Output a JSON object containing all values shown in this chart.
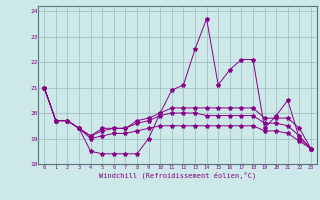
{
  "x": [
    0,
    1,
    2,
    3,
    4,
    5,
    6,
    7,
    8,
    9,
    10,
    11,
    12,
    13,
    14,
    15,
    16,
    17,
    18,
    19,
    20,
    21,
    22,
    23
  ],
  "line1": [
    21.0,
    19.7,
    19.7,
    19.4,
    18.5,
    18.4,
    18.4,
    18.4,
    18.4,
    19.0,
    20.0,
    20.9,
    21.1,
    22.5,
    23.7,
    21.1,
    21.7,
    22.1,
    22.1,
    19.4,
    19.9,
    20.5,
    19.0,
    18.6
  ],
  "line2": [
    21.0,
    19.7,
    19.7,
    19.4,
    19.1,
    19.4,
    19.4,
    19.4,
    19.7,
    19.8,
    20.0,
    20.2,
    20.2,
    20.2,
    20.2,
    20.2,
    20.2,
    20.2,
    20.2,
    19.8,
    19.8,
    19.8,
    19.4,
    18.6
  ],
  "line3": [
    21.0,
    19.7,
    19.7,
    19.4,
    19.1,
    19.3,
    19.4,
    19.4,
    19.6,
    19.7,
    19.9,
    20.0,
    20.0,
    20.0,
    19.9,
    19.9,
    19.9,
    19.9,
    19.9,
    19.6,
    19.6,
    19.5,
    19.1,
    18.6
  ],
  "line4": [
    21.0,
    19.7,
    19.7,
    19.4,
    19.0,
    19.1,
    19.2,
    19.2,
    19.3,
    19.4,
    19.5,
    19.5,
    19.5,
    19.5,
    19.5,
    19.5,
    19.5,
    19.5,
    19.5,
    19.3,
    19.3,
    19.2,
    18.9,
    18.6
  ],
  "line_color": "#880088",
  "bg_color": "#cce8e8",
  "grid_color": "#99bbbb",
  "xlabel": "Windchill (Refroidissement éolien,°C)",
  "xlim": [
    -0.5,
    23.5
  ],
  "ylim": [
    18.0,
    24.2
  ],
  "yticks": [
    18,
    19,
    20,
    21,
    22,
    23,
    24
  ],
  "xticks": [
    0,
    1,
    2,
    3,
    4,
    5,
    6,
    7,
    8,
    9,
    10,
    11,
    12,
    13,
    14,
    15,
    16,
    17,
    18,
    19,
    20,
    21,
    22,
    23
  ]
}
